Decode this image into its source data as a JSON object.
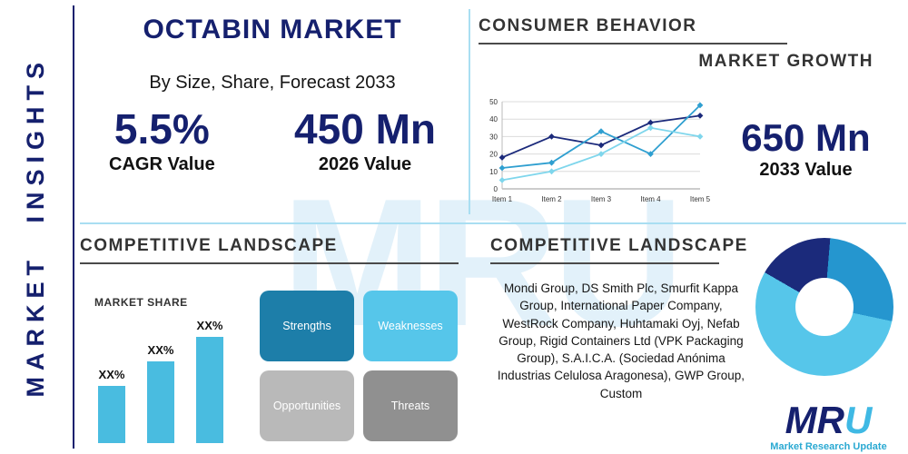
{
  "colors": {
    "navy": "#15206e",
    "accent_blue": "#49bce0",
    "mid_blue": "#2596cf",
    "light_blue": "#56c6ea",
    "divider_blue": "#a9def2",
    "underline_dark": "#4a4a4a"
  },
  "watermark": "MRU",
  "sidebar": {
    "title": "MARKET INSIGHTS"
  },
  "header": {
    "title": "OCTABIN MARKET",
    "subtitle": "By Size, Share, Forecast 2033",
    "stats": [
      {
        "value": "5.5%",
        "label": "CAGR Value"
      },
      {
        "value": "450 Mn",
        "label": "2026 Value"
      }
    ]
  },
  "consumer_behavior": {
    "heading": "CONSUMER BEHAVIOR",
    "subheading": "MARKET GROWTH",
    "stat_value": "650 Mn",
    "stat_label": "2033 Value"
  },
  "competitive_landscape_left": {
    "heading": "COMPETITIVE LANDSCAPE",
    "market_share_label": "MARKET SHARE",
    "swot": [
      {
        "label": "Strengths",
        "color": "#1d7ea9"
      },
      {
        "label": "Weaknesses",
        "color": "#56c6ea"
      },
      {
        "label": "Opportunities",
        "color": "#b9b9b9"
      },
      {
        "label": "Threats",
        "color": "#909090"
      }
    ]
  },
  "competitive_landscape_right": {
    "heading": "COMPETITIVE LANDSCAPE",
    "companies": "Mondi Group, DS Smith Plc, Smurfit Kappa Group, International Paper Company, WestRock Company, Huhtamaki Oyj, Nefab Group, Rigid Containers Ltd (VPK Packaging Group), S.A.I.C.A. (Sociedad Anónima Industrias Celulosa Aragonesa), GWP Group, Custom"
  },
  "logo": {
    "parts": [
      "M",
      "R",
      "U"
    ],
    "tagline": "Market Research Update"
  },
  "chart_data": [
    {
      "type": "line",
      "title": "Market Growth",
      "x": [
        "Item 1",
        "Item 2",
        "Item 3",
        "Item 4",
        "Item 5"
      ],
      "series": [
        {
          "name": "series-dark-navy",
          "color": "#1b2a7b",
          "values": [
            18,
            30,
            25,
            38,
            42
          ]
        },
        {
          "name": "series-mid-blue",
          "color": "#2f9fd0",
          "values": [
            12,
            15,
            33,
            20,
            48
          ]
        },
        {
          "name": "series-light-blue",
          "color": "#7fd6ec",
          "values": [
            5,
            10,
            20,
            35,
            30
          ]
        }
      ],
      "ylim": [
        0,
        50
      ],
      "yticks": [
        0,
        10,
        20,
        30,
        40,
        50
      ],
      "grid": true,
      "xlabel": "",
      "ylabel": "",
      "legend": "none"
    },
    {
      "type": "bar",
      "title": "MARKET SHARE",
      "categories": [
        "bar-1",
        "bar-2",
        "bar-3"
      ],
      "labels": [
        "XX%",
        "XX%",
        "XX%"
      ],
      "values": [
        35,
        50,
        65
      ],
      "ylim": [
        0,
        100
      ],
      "bar_color": "#49bce0"
    },
    {
      "type": "pie",
      "title": "Competitive share donut",
      "slices": [
        {
          "name": "segment-navy",
          "color": "#1b2a7b",
          "value": 18
        },
        {
          "name": "segment-mid-blue",
          "color": "#2596cf",
          "value": 27
        },
        {
          "name": "segment-light-blue",
          "color": "#56c6ea",
          "value": 55
        }
      ]
    }
  ]
}
